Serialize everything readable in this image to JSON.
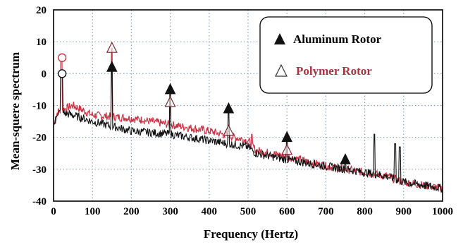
{
  "chart_data": {
    "type": "line",
    "title": "",
    "xlabel": "Frequency (Hertz)",
    "ylabel": "Mean-squere spectrum",
    "xlim": [
      0,
      1000
    ],
    "ylim": [
      -40,
      20
    ],
    "xticks": [
      0,
      100,
      200,
      300,
      400,
      500,
      600,
      700,
      800,
      900,
      1000
    ],
    "yticks": [
      -40,
      -30,
      -20,
      -10,
      0,
      10,
      20
    ],
    "grid": true,
    "legend_position": "top-right",
    "legend": [
      {
        "label": "Aluminum Rotor",
        "marker": "filled-triangle",
        "text_color": "#000000"
      },
      {
        "label": "Polymer Rotor",
        "marker": "open-triangle",
        "text_color": "#b03040"
      }
    ],
    "colors": {
      "aluminum": "#111111",
      "polymer": "#cc3344",
      "grid": "#8aa0b8"
    },
    "series": [
      {
        "name": "Aluminum Rotor",
        "baseline": [
          [
            2,
            -16
          ],
          [
            10,
            -12
          ],
          [
            50,
            -13
          ],
          [
            100,
            -15
          ],
          [
            200,
            -18
          ],
          [
            300,
            -19
          ],
          [
            400,
            -21
          ],
          [
            500,
            -23
          ],
          [
            520,
            -25
          ],
          [
            600,
            -27
          ],
          [
            700,
            -29
          ],
          [
            800,
            -31
          ],
          [
            850,
            -32
          ],
          [
            900,
            -34
          ],
          [
            1000,
            -36
          ]
        ],
        "peaks": [
          [
            150,
            2
          ],
          [
            300,
            -5
          ],
          [
            450,
            -11
          ],
          [
            600,
            -20
          ],
          [
            750,
            -27
          ]
        ],
        "extra_peaks": [
          [
            20,
            0
          ],
          [
            22,
            0
          ],
          [
            825,
            -19
          ],
          [
            878,
            -22
          ],
          [
            890,
            -23
          ]
        ]
      },
      {
        "name": "Polymer Rotor",
        "baseline": [
          [
            2,
            -16
          ],
          [
            10,
            -12
          ],
          [
            50,
            -10
          ],
          [
            100,
            -13
          ],
          [
            200,
            -14
          ],
          [
            300,
            -16
          ],
          [
            400,
            -18
          ],
          [
            500,
            -21
          ],
          [
            520,
            -24
          ],
          [
            600,
            -26
          ],
          [
            700,
            -29
          ],
          [
            800,
            -31
          ],
          [
            850,
            -32
          ],
          [
            900,
            -34
          ],
          [
            1000,
            -36
          ]
        ],
        "peaks": [
          [
            150,
            8
          ],
          [
            300,
            -9
          ],
          [
            450,
            -18
          ],
          [
            600,
            -24
          ]
        ],
        "extra_peaks": [
          [
            20,
            5
          ],
          [
            230,
            -15
          ],
          [
            340,
            -17
          ],
          [
            510,
            -19
          ]
        ]
      }
    ],
    "annotations": [
      {
        "shape": "circle",
        "x": 22,
        "y": 5
      },
      {
        "shape": "circle",
        "x": 22,
        "y": 0
      }
    ]
  }
}
